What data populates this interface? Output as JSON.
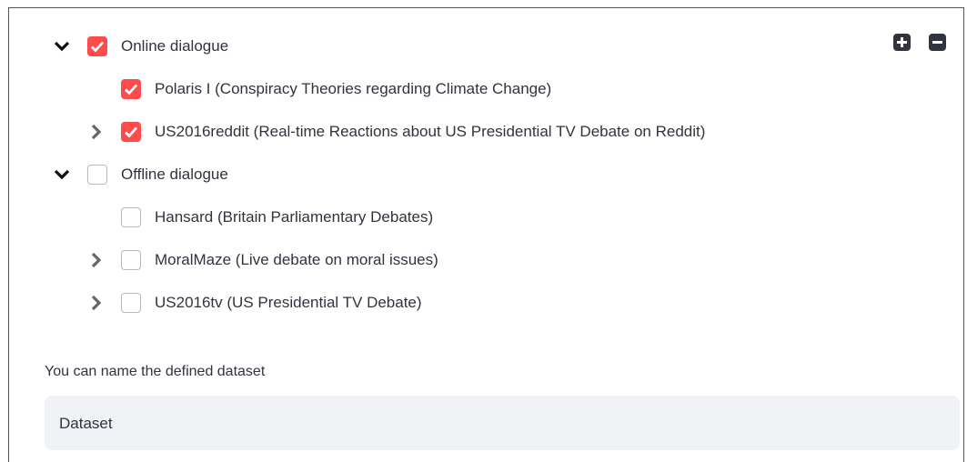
{
  "tree": [
    {
      "label": "Online dialogue",
      "checked": true,
      "expanded": true,
      "children": [
        {
          "label": "Polaris I (Conspiracy Theories regarding Climate Change)",
          "checked": true
        },
        {
          "label": "US2016reddit (Real-time Reactions about US Presidential TV Debate on Reddit)",
          "checked": true,
          "expanded": false
        }
      ]
    },
    {
      "label": "Offline dialogue",
      "checked": false,
      "expanded": true,
      "children": [
        {
          "label": "Hansard (Britain Parliamentary Debates)",
          "checked": false
        },
        {
          "label": "MoralMaze (Live debate on moral issues)",
          "checked": false,
          "expanded": false
        },
        {
          "label": "US2016tv (US Presidential TV Debate)",
          "checked": false,
          "expanded": false
        }
      ]
    }
  ],
  "input": {
    "label": "You can name the defined dataset",
    "value": "Dataset"
  }
}
